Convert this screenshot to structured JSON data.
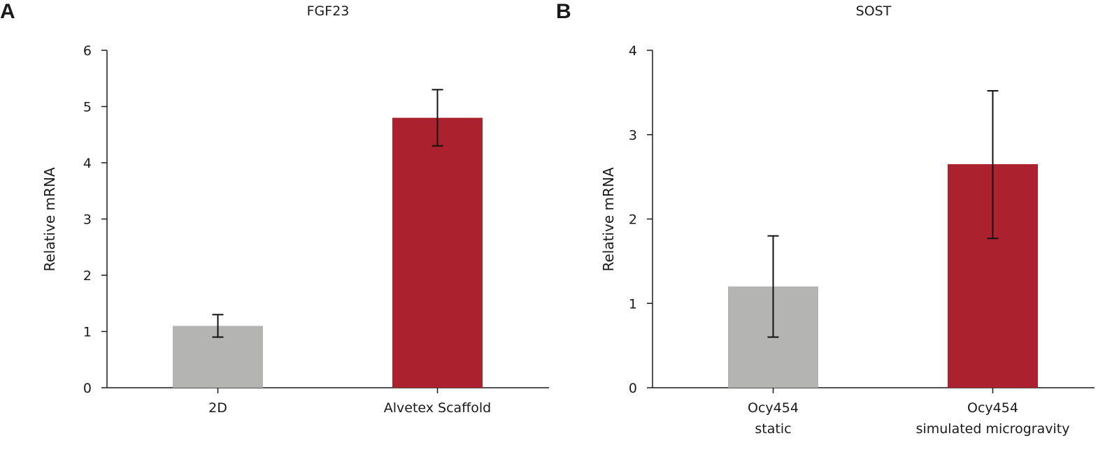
{
  "colors": {
    "gray": "#b4b4b2",
    "red": "#ab222e",
    "axis": "#1a1a1a"
  },
  "chart_data": [
    {
      "panel": "A",
      "type": "bar",
      "title": "FGF23",
      "ylabel": "Relative mRNA",
      "xlabel": "",
      "ylim": [
        0,
        6
      ],
      "yticks": [
        "0",
        "1",
        "2",
        "3",
        "4",
        "5",
        "6"
      ],
      "categories": [
        [
          "2D"
        ],
        [
          "Alvetex Scaffold"
        ]
      ],
      "values": [
        1.1,
        4.8
      ],
      "error_low": [
        0.9,
        4.3
      ],
      "error_high": [
        1.3,
        5.3
      ],
      "bar_colors": [
        "#b4b4b2",
        "#ab222e"
      ],
      "grid": false
    },
    {
      "panel": "B",
      "type": "bar",
      "title": "SOST",
      "ylabel": "Relative mRNA",
      "xlabel": "",
      "ylim": [
        0,
        4
      ],
      "yticks": [
        "0",
        "1",
        "2",
        "3",
        "4"
      ],
      "categories": [
        [
          "Ocy454",
          "static"
        ],
        [
          "Ocy454",
          "simulated microgravity"
        ]
      ],
      "values": [
        1.2,
        2.65
      ],
      "error_low": [
        0.6,
        1.77
      ],
      "error_high": [
        1.8,
        3.52
      ],
      "bar_colors": [
        "#b4b4b2",
        "#ab222e"
      ],
      "grid": false
    }
  ]
}
